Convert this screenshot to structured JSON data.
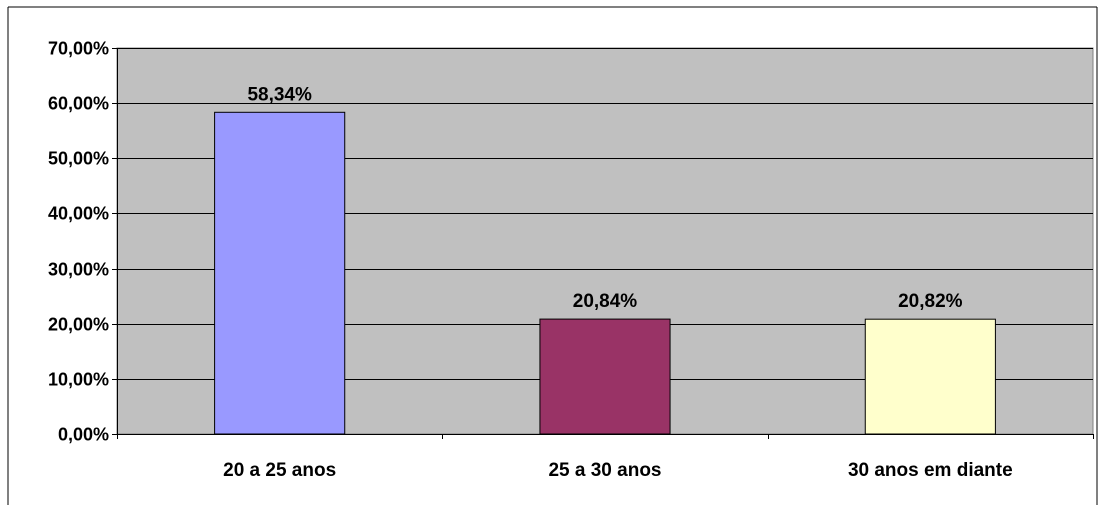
{
  "chart_data": {
    "type": "bar",
    "title": "",
    "xlabel": "",
    "ylabel": "",
    "categories": [
      "20 a 25 anos",
      "25 a 30 anos",
      "30 anos em diante"
    ],
    "values": [
      58.34,
      20.84,
      20.82
    ],
    "value_labels": [
      "58,34%",
      "20,84%",
      "20,82%"
    ],
    "ylim": [
      0,
      70
    ],
    "yticks": [
      0,
      10,
      20,
      30,
      40,
      50,
      60,
      70
    ],
    "ytick_labels": [
      "0,00%",
      "10,00%",
      "20,00%",
      "30,00%",
      "40,00%",
      "50,00%",
      "60,00%",
      "70,00%"
    ],
    "grid": true,
    "legend": "none",
    "bar_colors": [
      "#9999ff",
      "#993366",
      "#ffffcc"
    ],
    "plot_background": "#c0c0c0"
  }
}
